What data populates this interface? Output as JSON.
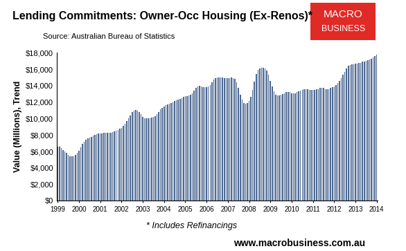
{
  "chart_data": {
    "type": "bar",
    "title": "Lending Commitments: Owner-Occ Housing (Ex-Renos)*",
    "subtitle": "Source: Australian Bureau of Statistics",
    "y_label": "Value (Millions), Trend",
    "footnote": "* Includes Refinancings",
    "website": "www.macrobusiness.com.au",
    "logo": [
      "MACRO",
      "BUSINESS"
    ],
    "color": "#4a6690",
    "grid": false,
    "categories": [
      "1999",
      null,
      null,
      null,
      null,
      null,
      null,
      null,
      null,
      null,
      null,
      null,
      "2000",
      null,
      null,
      null,
      null,
      null,
      null,
      null,
      null,
      null,
      null,
      null,
      "2001",
      null,
      null,
      null,
      null,
      null,
      null,
      null,
      null,
      null,
      null,
      null,
      "2002",
      null,
      null,
      null,
      null,
      null,
      null,
      null,
      null,
      null,
      null,
      null,
      "2003",
      null,
      null,
      null,
      null,
      null,
      null,
      null,
      null,
      null,
      null,
      null,
      "2004",
      null,
      null,
      null,
      null,
      null,
      null,
      null,
      null,
      null,
      null,
      null,
      "2005",
      null,
      null,
      null,
      null,
      null,
      null,
      null,
      null,
      null,
      null,
      null,
      "2006",
      null,
      null,
      null,
      null,
      null,
      null,
      null,
      null,
      null,
      null,
      null,
      "2007",
      null,
      null,
      null,
      null,
      null,
      null,
      null,
      null,
      null,
      null,
      null,
      "2008",
      null,
      null,
      null,
      null,
      null,
      null,
      null,
      null,
      null,
      null,
      null,
      "2009",
      null,
      null,
      null,
      null,
      null,
      null,
      null,
      null,
      null,
      null,
      null,
      "2010",
      null,
      null,
      null,
      null,
      null,
      null,
      null,
      null,
      null,
      null,
      null,
      "2011",
      null,
      null,
      null,
      null,
      null,
      null,
      null,
      null,
      null,
      null,
      null,
      "2012",
      null,
      null,
      null,
      null,
      null,
      null,
      null,
      null,
      null,
      null,
      null,
      "2013",
      null,
      null,
      null,
      null,
      null,
      null,
      null,
      null,
      null,
      null,
      null,
      "2014"
    ],
    "values": [
      6600,
      6550,
      6400,
      6200,
      6000,
      5800,
      5600,
      5450,
      5400,
      5450,
      5600,
      5850,
      6100,
      6500,
      6900,
      7200,
      7400,
      7600,
      7700,
      7800,
      7900,
      8000,
      8100,
      8150,
      8200,
      8200,
      8250,
      8250,
      8250,
      8300,
      8300,
      8350,
      8400,
      8500,
      8600,
      8750,
      8900,
      9100,
      9400,
      9700,
      10000,
      10400,
      10800,
      11000,
      11050,
      11000,
      10800,
      10500,
      10200,
      10050,
      10000,
      10000,
      10050,
      10100,
      10200,
      10300,
      10500,
      10800,
      11100,
      11300,
      11500,
      11600,
      11700,
      11800,
      11900,
      12000,
      12100,
      12200,
      12300,
      12400,
      12500,
      12600,
      12700,
      12750,
      12800,
      12900,
      13100,
      13400,
      13700,
      13900,
      13950,
      13900,
      13850,
      13800,
      13800,
      13900,
      14100,
      14400,
      14700,
      14900,
      15000,
      15000,
      15000,
      15000,
      14950,
      14900,
      14900,
      14950,
      15000,
      14950,
      14800,
      14400,
      13700,
      12900,
      12300,
      11900,
      11800,
      11900,
      12100,
      12600,
      13500,
      14500,
      15400,
      15900,
      16100,
      16200,
      16200,
      16100,
      15800,
      15300,
      14600,
      13900,
      13300,
      12900,
      12800,
      12800,
      12900,
      13000,
      13100,
      13200,
      13200,
      13200,
      13100,
      13100,
      13100,
      13200,
      13300,
      13400,
      13500,
      13600,
      13600,
      13600,
      13500,
      13500,
      13500,
      13500,
      13600,
      13600,
      13700,
      13700,
      13700,
      13600,
      13600,
      13600,
      13700,
      13800,
      13900,
      14100,
      14300,
      14600,
      14900,
      15300,
      15700,
      16100,
      16400,
      16500,
      16600,
      16600,
      16700,
      16700,
      16800,
      16800,
      16900,
      16900,
      17000,
      17100,
      17200,
      17300,
      17400,
      17600,
      17800
    ],
    "ylim": [
      0,
      18000
    ],
    "yticks": [
      {
        "value": 0,
        "label": "$0"
      },
      {
        "value": 2000,
        "label": "$2,000"
      },
      {
        "value": 4000,
        "label": "$4,000"
      },
      {
        "value": 6000,
        "label": "$6,000"
      },
      {
        "value": 8000,
        "label": "$8,000"
      },
      {
        "value": 10000,
        "label": "$10,000"
      },
      {
        "value": 12000,
        "label": "$12,000"
      },
      {
        "value": 14000,
        "label": "$14,000"
      },
      {
        "value": 16000,
        "label": "$16,000"
      },
      {
        "value": 18000,
        "label": "$18,000"
      }
    ]
  }
}
